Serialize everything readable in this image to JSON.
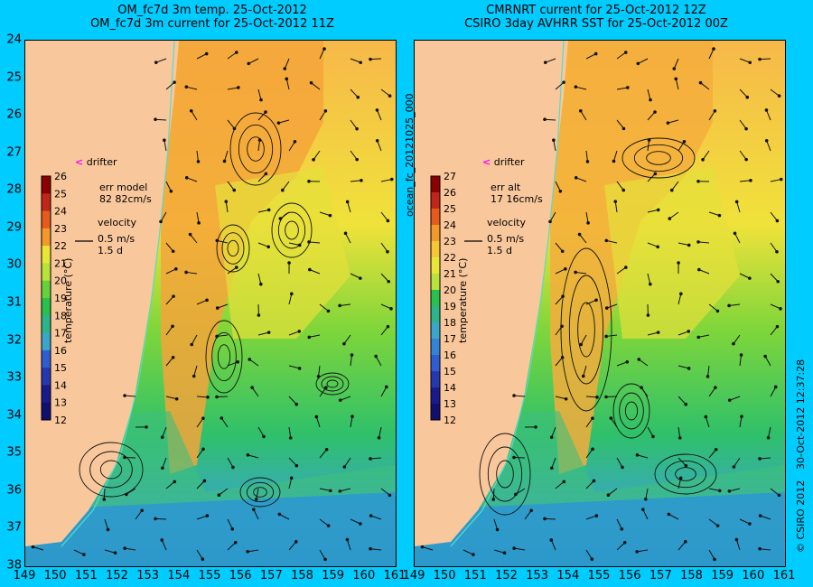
{
  "left": {
    "title_line1": "OM_fc7d 3m temp. 25-Oct-2012",
    "title_line2": "OM_fc7d 3m current for 25-Oct-2012 11Z",
    "drifter_label": "drifter",
    "err_line1": "err model",
    "err_line2": "82 82cm/s",
    "velocity_label": "velocity",
    "velocity_scale1": "0.5 m/s",
    "velocity_scale2": "1.5 d",
    "colorbar_title": "temperature (°C)",
    "colorbar_ticks": [
      "26",
      "25",
      "24",
      "23",
      "22",
      "21",
      "20",
      "19",
      "18",
      "17",
      "16",
      "15",
      "14",
      "13",
      "12"
    ]
  },
  "right": {
    "title_line1": "CMRNRT current for 25-Oct-2012 12Z",
    "title_line2": "CSIRO 3day AVHRR SST for 25-Oct-2012 00Z",
    "drifter_label": "drifter",
    "err_line1": "err alt",
    "err_line2": "17 16cm/s",
    "velocity_label": "velocity",
    "velocity_scale1": "0.5 m/s",
    "velocity_scale2": "1.5 d",
    "colorbar_title": "temperature (°C)",
    "colorbar_ticks": [
      "27",
      "26",
      "25",
      "24",
      "23",
      "22",
      "21",
      "20",
      "19",
      "18",
      "17",
      "16",
      "15",
      "14",
      "13",
      "12"
    ]
  },
  "y_ticks": [
    "24",
    "25",
    "26",
    "27",
    "28",
    "29",
    "30",
    "31",
    "32",
    "33",
    "34",
    "35",
    "36",
    "37",
    "38"
  ],
  "x_ticks": [
    "149",
    "150",
    "151",
    "152",
    "153",
    "154",
    "155",
    "156",
    "157",
    "158",
    "159",
    "160",
    "161"
  ],
  "vertical_id": "ocean_fc_20121025_000",
  "vertical_date": "30-Oct-2012 12:37:28",
  "vertical_copyright": "© CSIRO 2012",
  "colors": {
    "background": "#00ccff",
    "land": "#f9c79c",
    "drifter": "#ff00ff"
  }
}
